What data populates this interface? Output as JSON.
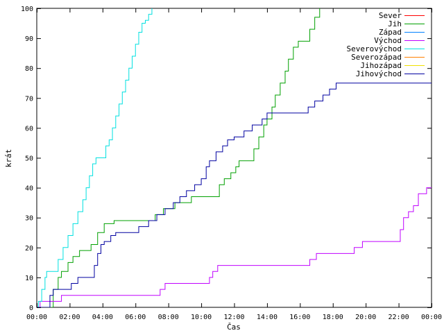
{
  "chart_data": {
    "type": "line",
    "xlabel": "Čas",
    "ylabel": "krát",
    "ylim": [
      0,
      100
    ],
    "xlim": [
      0,
      24
    ],
    "grid": false,
    "legend_position": "top-right",
    "x_ticks": [
      "00:00",
      "02:00",
      "04:00",
      "06:00",
      "08:00",
      "10:00",
      "12:00",
      "14:00",
      "16:00",
      "18:00",
      "20:00",
      "22:00",
      "00:00"
    ],
    "y_ticks": [
      0,
      10,
      20,
      30,
      40,
      50,
      60,
      70,
      80,
      90,
      100
    ],
    "series": [
      {
        "name": "Sever",
        "color": "#ff0000",
        "points": []
      },
      {
        "name": "Jih",
        "color": "#00a000",
        "points": [
          [
            0,
            0
          ],
          [
            0.6,
            0
          ],
          [
            1.0,
            6
          ],
          [
            1.3,
            10
          ],
          [
            1.5,
            12
          ],
          [
            1.9,
            15
          ],
          [
            2.2,
            17
          ],
          [
            2.6,
            19
          ],
          [
            3.3,
            21
          ],
          [
            3.7,
            25
          ],
          [
            4.1,
            28
          ],
          [
            4.7,
            29
          ],
          [
            6.8,
            29
          ],
          [
            7.2,
            31
          ],
          [
            7.7,
            33
          ],
          [
            8.4,
            35
          ],
          [
            9.4,
            37
          ],
          [
            10.7,
            37
          ],
          [
            11.1,
            41
          ],
          [
            11.4,
            43
          ],
          [
            11.8,
            45
          ],
          [
            12.1,
            47
          ],
          [
            12.3,
            49
          ],
          [
            13.0,
            49
          ],
          [
            13.2,
            53
          ],
          [
            13.5,
            57
          ],
          [
            13.8,
            61
          ],
          [
            14.0,
            63
          ],
          [
            14.3,
            67
          ],
          [
            14.5,
            71
          ],
          [
            14.8,
            75
          ],
          [
            15.1,
            79
          ],
          [
            15.3,
            83
          ],
          [
            15.6,
            87
          ],
          [
            15.9,
            89
          ],
          [
            16.4,
            89
          ],
          [
            16.6,
            93
          ],
          [
            16.9,
            97
          ],
          [
            17.2,
            100
          ]
        ]
      },
      {
        "name": "Západ",
        "color": "#0080ff",
        "points": []
      },
      {
        "name": "Východ",
        "color": "#c000ff",
        "points": [
          [
            0,
            0
          ],
          [
            0.2,
            2
          ],
          [
            1.5,
            4
          ],
          [
            7.2,
            4
          ],
          [
            7.5,
            6
          ],
          [
            7.8,
            8
          ],
          [
            10.3,
            8
          ],
          [
            10.5,
            10
          ],
          [
            10.7,
            12
          ],
          [
            11.0,
            14
          ],
          [
            16.2,
            14
          ],
          [
            16.6,
            16
          ],
          [
            17.0,
            18
          ],
          [
            19.0,
            18
          ],
          [
            19.3,
            20
          ],
          [
            19.8,
            22
          ],
          [
            21.9,
            22
          ],
          [
            22.1,
            26
          ],
          [
            22.3,
            30
          ],
          [
            22.6,
            32
          ],
          [
            22.9,
            34
          ],
          [
            23.2,
            38
          ],
          [
            23.7,
            40
          ],
          [
            24.0,
            40
          ]
        ]
      },
      {
        "name": "Severovýchod",
        "color": "#00e0e0",
        "points": [
          [
            0,
            0
          ],
          [
            0.1,
            2
          ],
          [
            0.3,
            6
          ],
          [
            0.5,
            10
          ],
          [
            0.6,
            12
          ],
          [
            1.1,
            12
          ],
          [
            1.3,
            16
          ],
          [
            1.6,
            20
          ],
          [
            1.9,
            24
          ],
          [
            2.2,
            28
          ],
          [
            2.5,
            32
          ],
          [
            2.8,
            36
          ],
          [
            3.0,
            40
          ],
          [
            3.2,
            44
          ],
          [
            3.4,
            48
          ],
          [
            3.6,
            50
          ],
          [
            4.0,
            50
          ],
          [
            4.2,
            54
          ],
          [
            4.4,
            56
          ],
          [
            4.6,
            60
          ],
          [
            4.8,
            64
          ],
          [
            5.0,
            68
          ],
          [
            5.2,
            72
          ],
          [
            5.4,
            76
          ],
          [
            5.6,
            80
          ],
          [
            5.8,
            84
          ],
          [
            6.0,
            88
          ],
          [
            6.2,
            92
          ],
          [
            6.4,
            95
          ],
          [
            6.6,
            96
          ],
          [
            6.8,
            98
          ],
          [
            7.0,
            100
          ]
        ]
      },
      {
        "name": "Severozápad",
        "color": "#ff8000",
        "points": []
      },
      {
        "name": "Jihozápad",
        "color": "#f0e000",
        "points": []
      },
      {
        "name": "Jihovýchod",
        "color": "#0000a0",
        "points": [
          [
            0,
            0
          ],
          [
            0.6,
            0
          ],
          [
            0.8,
            4
          ],
          [
            1.0,
            6
          ],
          [
            2.0,
            6
          ],
          [
            2.1,
            8
          ],
          [
            2.5,
            10
          ],
          [
            3.3,
            10
          ],
          [
            3.5,
            14
          ],
          [
            3.7,
            18
          ],
          [
            3.9,
            21
          ],
          [
            4.1,
            22
          ],
          [
            4.5,
            24
          ],
          [
            4.8,
            25
          ],
          [
            6.0,
            25
          ],
          [
            6.2,
            27
          ],
          [
            6.8,
            29
          ],
          [
            7.3,
            31
          ],
          [
            7.8,
            33
          ],
          [
            8.3,
            35
          ],
          [
            8.7,
            37
          ],
          [
            9.1,
            39
          ],
          [
            9.6,
            41
          ],
          [
            10.0,
            43
          ],
          [
            10.3,
            47
          ],
          [
            10.5,
            49
          ],
          [
            10.9,
            52
          ],
          [
            11.3,
            54
          ],
          [
            11.6,
            56
          ],
          [
            12.0,
            57
          ],
          [
            12.6,
            59
          ],
          [
            13.1,
            61
          ],
          [
            13.7,
            63
          ],
          [
            14.0,
            65
          ],
          [
            15.0,
            65
          ],
          [
            16.2,
            65
          ],
          [
            16.5,
            67
          ],
          [
            16.9,
            69
          ],
          [
            17.4,
            71
          ],
          [
            17.8,
            73
          ],
          [
            18.2,
            75
          ],
          [
            24.0,
            75
          ]
        ]
      }
    ]
  }
}
